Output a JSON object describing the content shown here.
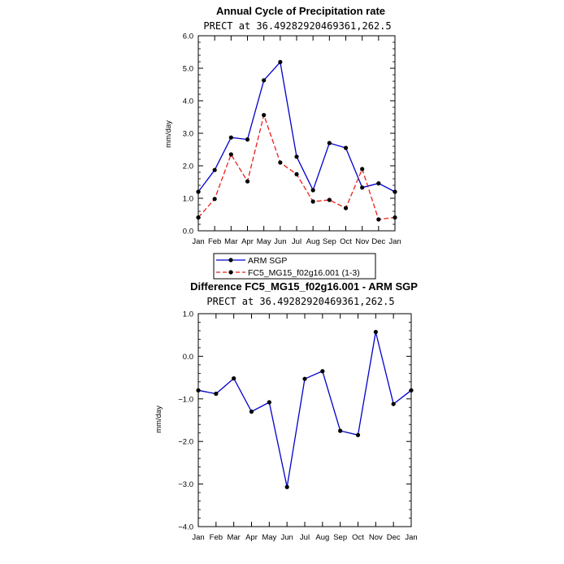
{
  "chart_data": [
    {
      "type": "line",
      "title": "Annual Cycle of Precipitation rate",
      "subtitle": "PRECT at 36.49282920469361,262.5",
      "ylabel": "mm/day",
      "ylim": [
        0,
        6
      ],
      "yticks": [
        "0.0",
        "1.0",
        "2.0",
        "3.0",
        "4.0",
        "5.0",
        "6.0"
      ],
      "categories": [
        "Jan",
        "Feb",
        "Mar",
        "Apr",
        "May",
        "Jun",
        "Jul",
        "Aug",
        "Sep",
        "Oct",
        "Nov",
        "Dec",
        "Jan"
      ],
      "series": [
        {
          "name": "ARM SGP",
          "color": "#0000cc",
          "dashed": false,
          "values": [
            1.2,
            1.87,
            2.87,
            2.81,
            4.63,
            5.19,
            2.28,
            1.25,
            2.7,
            2.55,
            1.33,
            1.46,
            1.2
          ]
        },
        {
          "name": "FC5_MG15_f02g16.001 (1-3)",
          "color": "#e8201a",
          "dashed": true,
          "values": [
            0.41,
            0.98,
            2.35,
            1.52,
            3.56,
            2.1,
            1.74,
            0.9,
            0.95,
            0.7,
            1.9,
            0.35,
            0.41
          ]
        }
      ],
      "grid": false
    },
    {
      "type": "line",
      "title": "Difference FC5_MG15_f02g16.001 - ARM SGP",
      "subtitle": "PRECT at 36.49282920469361,262.5",
      "ylabel": "mm/day",
      "ylim": [
        -4,
        1
      ],
      "yticks": [
        "−4.0",
        "−3.0",
        "−2.0",
        "−1.0",
        "0.0",
        "1.0"
      ],
      "categories": [
        "Jan",
        "Feb",
        "Mar",
        "Apr",
        "May",
        "Jun",
        "Jul",
        "Aug",
        "Sep",
        "Oct",
        "Nov",
        "Dec",
        "Jan"
      ],
      "series": [
        {
          "color": "#0000cc",
          "dashed": false,
          "values": [
            -0.8,
            -0.88,
            -0.52,
            -1.3,
            -1.08,
            -3.07,
            -0.53,
            -0.35,
            -1.75,
            -1.85,
            0.57,
            -1.12,
            -0.8
          ]
        }
      ],
      "grid": false
    }
  ]
}
